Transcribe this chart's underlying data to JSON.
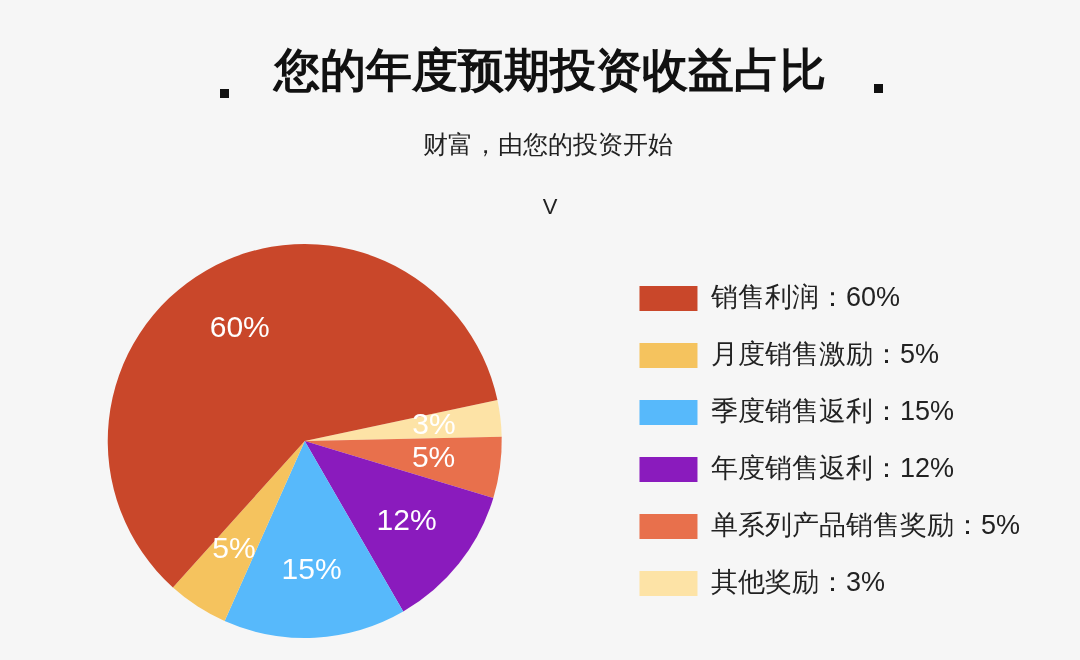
{
  "chart_data": {
    "type": "pie",
    "title": "您的年度预期投资收益占比",
    "subtitle": "财富，由您的投资开始",
    "annotations": [
      "V"
    ],
    "categories": [
      "销售利润：60%",
      "月度销售激励：5%",
      "季度销售返利：15%",
      "年度销售返利：12%",
      "单系列产品销售奖励：5%",
      "其他奖励：3%"
    ],
    "values": [
      60,
      5,
      15,
      12,
      5,
      3
    ],
    "colors": [
      "#c9472a",
      "#f5c35e",
      "#57b9fb",
      "#8a1bbd",
      "#e8704c",
      "#fde3a6"
    ],
    "value_labels": [
      "60%",
      "5%",
      "15%",
      "12%",
      "5%",
      "3%"
    ],
    "legend": "right"
  }
}
